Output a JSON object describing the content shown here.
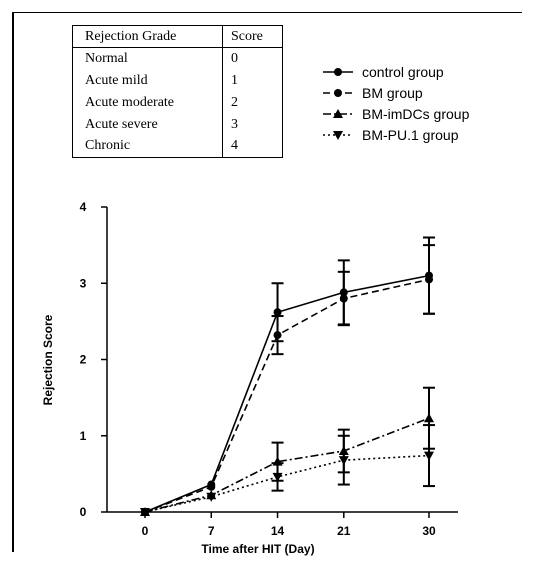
{
  "table": {
    "headers": [
      "Rejection Grade",
      "Score"
    ],
    "rows": [
      [
        "Normal",
        "0"
      ],
      [
        "Acute mild",
        "1"
      ],
      [
        "Acute moderate",
        "2"
      ],
      [
        "Acute severe",
        "3"
      ],
      [
        "Chronic",
        "4"
      ]
    ]
  },
  "chart_data": {
    "type": "line",
    "xlabel": "Time after HIT (Day)",
    "ylabel": "Rejection Score",
    "x": [
      0,
      7,
      14,
      21,
      30
    ],
    "ylim": [
      0,
      4
    ],
    "yticks": [
      0,
      1,
      2,
      3,
      4
    ],
    "grid": false,
    "legend_position": "top-right",
    "series": [
      {
        "name": "control group",
        "style": "solid",
        "marker": "circle",
        "values": [
          0,
          0.36,
          2.62,
          2.88,
          3.1
        ],
        "error": [
          0,
          0.02,
          0.38,
          0.42,
          0.5
        ]
      },
      {
        "name": "BM group",
        "style": "dashed",
        "marker": "circle",
        "values": [
          0,
          0.33,
          2.32,
          2.8,
          3.05
        ],
        "error": [
          0,
          0.02,
          0.25,
          0.35,
          0.45
        ]
      },
      {
        "name": "BM-imDCs group",
        "style": "dashdot",
        "marker": "triangle-up",
        "values": [
          0,
          0.22,
          0.66,
          0.8,
          1.23
        ],
        "error": [
          0,
          0.02,
          0.25,
          0.28,
          0.4
        ]
      },
      {
        "name": "BM-PU.1 group",
        "style": "dotted",
        "marker": "triangle-down",
        "values": [
          0,
          0.2,
          0.46,
          0.68,
          0.74
        ],
        "error": [
          0,
          0.02,
          0.18,
          0.32,
          0.4
        ]
      }
    ]
  }
}
